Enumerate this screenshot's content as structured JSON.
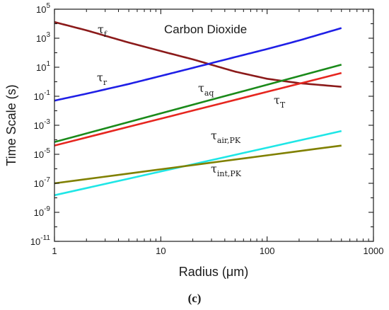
{
  "chart_data": {
    "type": "line",
    "title": "Carbon Dioxide",
    "xlabel": "Radius (μm)",
    "ylabel": "Time Scale (s)",
    "x_scale": "log",
    "y_scale": "log",
    "xlim": [
      1,
      1000
    ],
    "ylim": [
      1e-11,
      100000.0
    ],
    "x_ticks": [
      1,
      10,
      100,
      1000
    ],
    "x_tick_labels": [
      "1",
      "10",
      "100",
      "1000"
    ],
    "y_ticks": [
      1e-11,
      1e-09,
      1e-07,
      1e-05,
      0.001,
      0.1,
      10.0,
      1000.0,
      100000.0
    ],
    "y_tick_labels": [
      {
        "base": "10",
        "exp": "-11"
      },
      {
        "base": "10",
        "exp": "-9"
      },
      {
        "base": "10",
        "exp": "-7"
      },
      {
        "base": "10",
        "exp": "-5"
      },
      {
        "base": "10",
        "exp": "-3"
      },
      {
        "base": "10",
        "exp": "-1"
      },
      {
        "base": "10",
        "exp": "1"
      },
      {
        "base": "10",
        "exp": "3"
      },
      {
        "base": "10",
        "exp": "5"
      }
    ],
    "grid": false,
    "legend": "none (inline curve labels)",
    "series": [
      {
        "id": "tau-f",
        "sym": "τ",
        "sub": "f",
        "color": "#8b1a1a",
        "points": [
          [
            1,
            13000
          ],
          [
            2,
            3500
          ],
          [
            5,
            500
          ],
          [
            10,
            130
          ],
          [
            20,
            35
          ],
          [
            50,
            5
          ],
          [
            100,
            1.6
          ],
          [
            200,
            0.8
          ],
          [
            500,
            0.45
          ]
        ]
      },
      {
        "id": "tau-r",
        "sym": "τ",
        "sub": "r",
        "color": "#1f1fe6",
        "points": [
          [
            1,
            0.05
          ],
          [
            2,
            0.15
          ],
          [
            5,
            0.7
          ],
          [
            10,
            2.5
          ],
          [
            20,
            9
          ],
          [
            50,
            50
          ],
          [
            100,
            180
          ],
          [
            200,
            700
          ],
          [
            500,
            5000
          ]
        ]
      },
      {
        "id": "tau-aq",
        "sym": "τ",
        "sub": "aq",
        "color": "#1a8a1a",
        "points": [
          [
            1,
            7e-05
          ],
          [
            500,
            15
          ]
        ]
      },
      {
        "id": "tau-T",
        "sym": "τ",
        "sub": "T",
        "color": "#e6261f",
        "points": [
          [
            1,
            4e-05
          ],
          [
            500,
            4
          ]
        ]
      },
      {
        "id": "tau-air-pk",
        "sym": "τ",
        "sub": "air,PK",
        "color": "#1fe6e6",
        "points": [
          [
            1,
            1.5e-08
          ],
          [
            500,
            0.0004
          ]
        ]
      },
      {
        "id": "tau-int-pk",
        "sym": "τ",
        "sub": "int,PK",
        "color": "#808000",
        "points": [
          [
            1,
            1e-07
          ],
          [
            500,
            4e-05
          ]
        ]
      }
    ],
    "annotations": [
      {
        "series": "tau-f",
        "text_sym": "τ",
        "text_sub": "f"
      },
      {
        "series": "tau-r",
        "text_sym": "τ",
        "text_sub": "r"
      },
      {
        "series": "tau-aq",
        "text_sym": "τ",
        "text_sub": "aq"
      },
      {
        "series": "tau-T",
        "text_sym": "τ",
        "text_sub": "T"
      },
      {
        "series": "tau-air-pk",
        "text_sym": "τ",
        "text_sub": "air,PK"
      },
      {
        "series": "tau-int-pk",
        "text_sym": "τ",
        "text_sub": "int,PK"
      }
    ]
  },
  "caption": "(c)"
}
